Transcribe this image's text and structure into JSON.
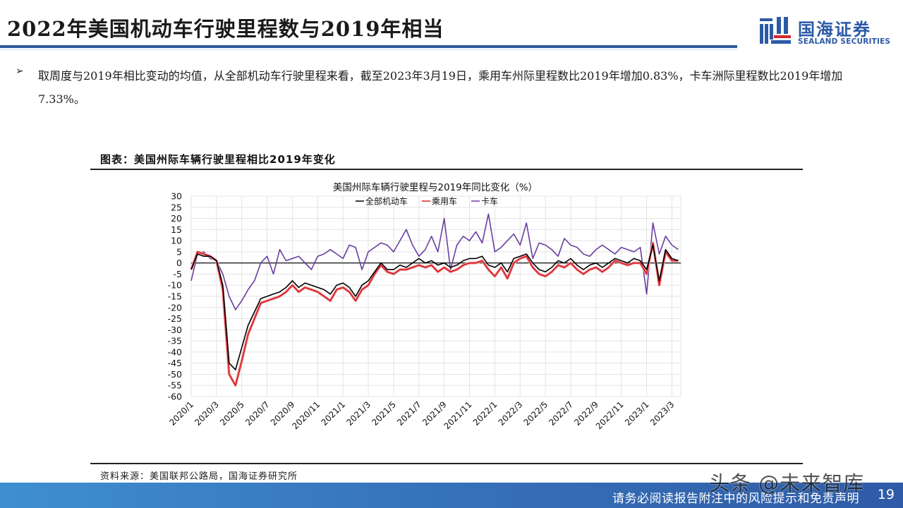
{
  "header": {
    "title": "2022年美国机动车行驶里程数与2019年相当",
    "logo_cn": "国海证券",
    "logo_en": "SEALAND SECURITIES",
    "brand_color": "#2b5aa6",
    "logo_accent_color": "#d9252b"
  },
  "body": {
    "bullet_icon": "arrow-bullet-icon",
    "bullet_glyph": "➢",
    "bullet_text": "取周度与2019年相比变动的均值，从全部机动车行驶里程来看，截至2023年3月19日，乘用车州际里程数比2019年增加0.83%，卡车洲际里程数比2019年增加7.33%。"
  },
  "figure": {
    "caption": "图表：美国州际车辆行驶里程相比2019年变化",
    "source": "资料来源：美国联邦公路局，国海证券研究所"
  },
  "chart_data": {
    "type": "line",
    "title": "美国州际车辆行驶里程与2019年同比变化（%）",
    "xlabel": "",
    "ylabel": "",
    "ylim": [
      -60,
      30
    ],
    "ytick_step": 5,
    "yticks": [
      "30",
      "25",
      "20",
      "15",
      "10",
      "5",
      "0",
      "-5",
      "-10",
      "-15",
      "-20",
      "-25",
      "-30",
      "-35",
      "-40",
      "-45",
      "-50",
      "-55",
      "-60"
    ],
    "x_tick_labels": [
      "2020/1",
      "2020/3",
      "2020/5",
      "2020/7",
      "2020/9",
      "2020/11",
      "2021/1",
      "2021/3",
      "2021/5",
      "2021/7",
      "2021/9",
      "2021/11",
      "2022/1",
      "2022/3",
      "2022/5",
      "2022/7",
      "2022/9",
      "2022/11",
      "2023/1",
      "2023/3"
    ],
    "grid": true,
    "legend_position": "top",
    "x_months": [
      0,
      0.5,
      1,
      1.5,
      2,
      2.5,
      3,
      3.5,
      4,
      4.5,
      5,
      5.5,
      6,
      6.5,
      7,
      7.5,
      8,
      8.5,
      9,
      9.5,
      10,
      10.5,
      11,
      11.5,
      12,
      12.5,
      13,
      13.5,
      14,
      14.5,
      15,
      15.5,
      16,
      16.5,
      17,
      17.5,
      18,
      18.5,
      19,
      19.5,
      20,
      20.5,
      21,
      21.5,
      22,
      22.5,
      23,
      23.5,
      24,
      24.5,
      25,
      25.5,
      26,
      26.5,
      27,
      27.5,
      28,
      28.5,
      29,
      29.5,
      30,
      30.5,
      31,
      31.5,
      32,
      32.5,
      33,
      33.5,
      34,
      34.5,
      35,
      35.5,
      36,
      36.5,
      37,
      37.5,
      38,
      38.5
    ],
    "x_note": "months elapsed since 2020/1 (weekly data, approximated at half-month resolution)",
    "series": [
      {
        "name": "全部机动车",
        "color": "#000000",
        "values": [
          -3,
          4,
          3,
          3,
          1,
          -10,
          -45,
          -48,
          -38,
          -28,
          -22,
          -16,
          -15,
          -14,
          -13,
          -11,
          -8,
          -11,
          -9,
          -10,
          -11,
          -12,
          -14,
          -10,
          -9,
          -11,
          -15,
          -10,
          -8,
          -4,
          0,
          -3,
          -3,
          -1,
          -2,
          0,
          2,
          0,
          1,
          -1,
          0,
          -2,
          -1,
          1,
          2,
          2,
          3,
          -1,
          -2,
          0,
          -4,
          2,
          3,
          4,
          0,
          -3,
          -4,
          -2,
          1,
          0,
          2,
          -1,
          -3,
          -1,
          0,
          -2,
          0,
          2,
          1,
          0,
          2,
          1,
          -3,
          8,
          -8,
          6,
          2,
          1
        ]
      },
      {
        "name": "乘用车",
        "color": "#d9252b",
        "values": [
          -3,
          5,
          4,
          3,
          1,
          -12,
          -50,
          -55,
          -44,
          -32,
          -25,
          -18,
          -17,
          -16,
          -15,
          -13,
          -10,
          -13,
          -11,
          -12,
          -13,
          -15,
          -17,
          -12,
          -11,
          -13,
          -17,
          -12,
          -10,
          -5,
          -1,
          -4,
          -5,
          -3,
          -3,
          -2,
          -1,
          -2,
          -1,
          -4,
          -2,
          -4,
          -3,
          -1,
          0,
          0,
          1,
          -3,
          -6,
          -2,
          -7,
          0,
          2,
          3,
          -2,
          -5,
          -6,
          -4,
          -1,
          -2,
          0,
          -3,
          -5,
          -3,
          -2,
          -4,
          -2,
          1,
          0,
          -1,
          0,
          0,
          -5,
          9,
          -10,
          5,
          1,
          1
        ]
      },
      {
        "name": "卡车",
        "color": "#6a3fa0",
        "values": [
          -8,
          4,
          5,
          2,
          1,
          -5,
          -15,
          -21,
          -17,
          -12,
          -8,
          0,
          3,
          -5,
          6,
          1,
          2,
          3,
          0,
          -3,
          3,
          4,
          6,
          4,
          2,
          8,
          7,
          -3,
          5,
          7,
          9,
          8,
          5,
          10,
          15,
          8,
          3,
          6,
          12,
          5,
          20,
          -3,
          8,
          12,
          10,
          14,
          9,
          22,
          5,
          7,
          10,
          13,
          8,
          18,
          2,
          9,
          8,
          6,
          3,
          11,
          8,
          7,
          4,
          3,
          6,
          8,
          6,
          4,
          7,
          6,
          5,
          7,
          -14,
          18,
          4,
          12,
          8,
          6
        ]
      }
    ]
  },
  "chart_legend": [
    {
      "label": "全部机动车",
      "color": "#000000"
    },
    {
      "label": "乘用车",
      "color": "#d9252b"
    },
    {
      "label": "卡车",
      "color": "#6a3fa0"
    }
  ],
  "footer": {
    "disclaimer": "请务必阅读报告附注中的风险提示和免责声明",
    "page_number": "19",
    "watermark": "头条 @未来智库"
  }
}
